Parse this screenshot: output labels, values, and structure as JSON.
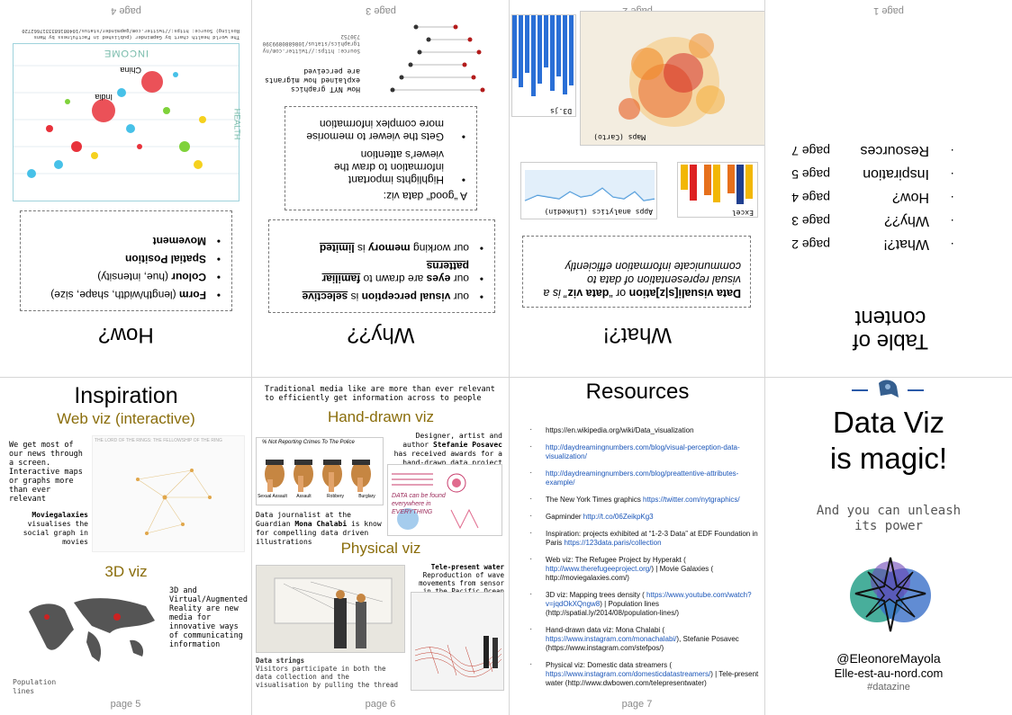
{
  "page1_toc": {
    "page_label": "page 1",
    "title": "Table of content",
    "items": [
      {
        "label": "What?!",
        "page": "page 2"
      },
      {
        "label": "Why??",
        "page": "page 3"
      },
      {
        "label": "How?",
        "page": "page 4"
      },
      {
        "label": "Inspiration",
        "page": "page 5"
      },
      {
        "label": "Resources",
        "page": "page 7"
      }
    ]
  },
  "page2_what": {
    "page_label": "page 2",
    "title": "What?!",
    "def_part1": "Data visuali[s|z]ation",
    "def_part2": " or “",
    "def_part3": "data viz",
    "def_part4": "” is a visual representation of data to communicate information efficiently",
    "label_d3": "D3.js",
    "label_maps": "Maps (Carto)",
    "label_apps": "Apps analytics (Linkedin)",
    "label_excel": "Excel"
  },
  "page3_why": {
    "page_label": "page 3",
    "title": "Why??",
    "b1_pre": "our ",
    "b1_bold": "visual perception",
    "b1_mid": " is ",
    "b1_under": "selective",
    "b2_pre": "our ",
    "b2_bold": "eyes",
    "b2_mid": " are drawn to ",
    "b2_under": "familiar patterns",
    "b3_pre": "our working ",
    "b3_bold": "memory",
    "b3_mid": " is ",
    "b3_under": "limited",
    "good_title": "A “good” data viz:",
    "good_1": "Highlights important information to draw the viewer's attention",
    "good_2": "Gets the viewer to memorise more complex information",
    "nyt_caption": "How NYT graphics explained how migrants are perceived",
    "nyt_source": "Source: https://twitter.com/nytgraphics/status/1086880899390730752"
  },
  "page4_how": {
    "page_label": "page 4",
    "title": "How?",
    "form_bold": "Form",
    "form_rest": " (length/width, shape, size)",
    "colour_bold": "Colour",
    "colour_rest": " (hue, intensity)",
    "spatial": "Spatial Position",
    "movement": "Movement",
    "chart_income": "INCOME",
    "chart_health": "HEALTH",
    "chart_india": "India",
    "chart_china": "China",
    "source": "The world health chart by Gapminder (published in Factfulness by Hans Rosling) Source: https://twitter.com/gapminder/status/1040816833317662720"
  },
  "page5_inspiration": {
    "page_label": "page 5",
    "title": "Inspiration",
    "web_title": "Web viz (interactive)",
    "web_text": "We get most of our news through a screen. Interactive maps or graphs more than ever relevant",
    "lotr_title": "THE LORD OF THE RINGS: THE FELLOWSHIP OF THE RING",
    "movie_bold": "Moviegalaxies",
    "movie_text": " visualises the social graph in movies",
    "threed_title": "3D viz",
    "threed_text": "3D and Virtual/Augmented Reality are new media for innovative ways of communicating information",
    "pop_lines": "Population lines"
  },
  "page6_handdrawn": {
    "page_label": "page 6",
    "intro": "Traditional media like are more than ever relevant to efficiently get information across to people",
    "hand_title": "Hand-drawn viz",
    "posavec_pre": "Designer, artist and author ",
    "posavec_bold": "Stefanie Posavec",
    "posavec_post": " has received awards for a hand-drawn data project",
    "chalabi_pre": "Data journalist at the Guardian ",
    "chalabi_bold": "Mona Chalabi",
    "chalabi_post": " is know for compelling data driven illustrations",
    "sketch_title": "% Not Reporting Crimes To The Police",
    "sketch_labels": [
      "Sexual Assault",
      "Assault",
      "Robbery",
      "Burglary"
    ],
    "found_text": "DATA can be found everywhere in EVERYTHING",
    "physical_title": "Physical viz",
    "telepresent_bold": "Tele-present water",
    "telepresent_text": "Reproduction of wave movements from sensor in the Pacific Ocean",
    "strings_bold": "Data strings",
    "strings_text": "Visitors participate in both the data collection and the visualisation by pulling the thread"
  },
  "page7_resources": {
    "page_label": "page 7",
    "title": "Resources",
    "items": [
      {
        "pre": "https://en.wikipedia.org/wiki/Data_visualization",
        "link": "",
        "post": ""
      },
      {
        "pre": "",
        "link": "http://daydreamingnumbers.com/blog/visual-perception-data-visualization/",
        "post": ""
      },
      {
        "pre": "",
        "link": "http://daydreamingnumbers.com/blog/preattentive-attributes-example/",
        "post": ""
      },
      {
        "pre": "The New York Times graphics ",
        "link": "https://twitter.com/nytgraphics/",
        "post": ""
      },
      {
        "pre": "Gapminder ",
        "link": "http://t.co/06ZeikpKg3",
        "post": ""
      },
      {
        "pre": "Inspiration: projects exhibited at “1-2-3 Data” at EDF Foundation in Paris ",
        "link": "https://123data.paris/collection",
        "post": ""
      },
      {
        "pre": "Web viz: The Refugee Project by Hyperakt ( ",
        "link": "http://www.therefugeeproject.org/",
        "post": ") | Movie Galaxies ( http://moviegalaxies.com/)"
      },
      {
        "pre": "3D viz: Mapping trees density ( ",
        "link": "https://www.youtube.com/watch?v=jqdOkXQngw8",
        "post": ") | Population lines (http://spatial.ly/2014/08/population-lines/)"
      },
      {
        "pre": "Hand-drawn data viz: Mona Chalabi ( ",
        "link": "https://www.instagram.com/monachalabi/",
        "post": "), Stefanie Posavec (https://www.instagram.com/stefpos/)"
      },
      {
        "pre": "Physical viz: Domestic data streamers ( ",
        "link": "https://www.instagram.com/domesticdatastreamers/",
        "post": ") | Tele-present water (http://www.dwbowen.com/telepresentwater)"
      }
    ]
  },
  "page8_cover": {
    "title_line1": "Data Viz",
    "title_line2": "is magic!",
    "subtitle": "And you can unleash its power",
    "handle": "@EleonoreMayola",
    "site": "Elle-est-au-nord.com",
    "hashtag": "#datazine"
  }
}
